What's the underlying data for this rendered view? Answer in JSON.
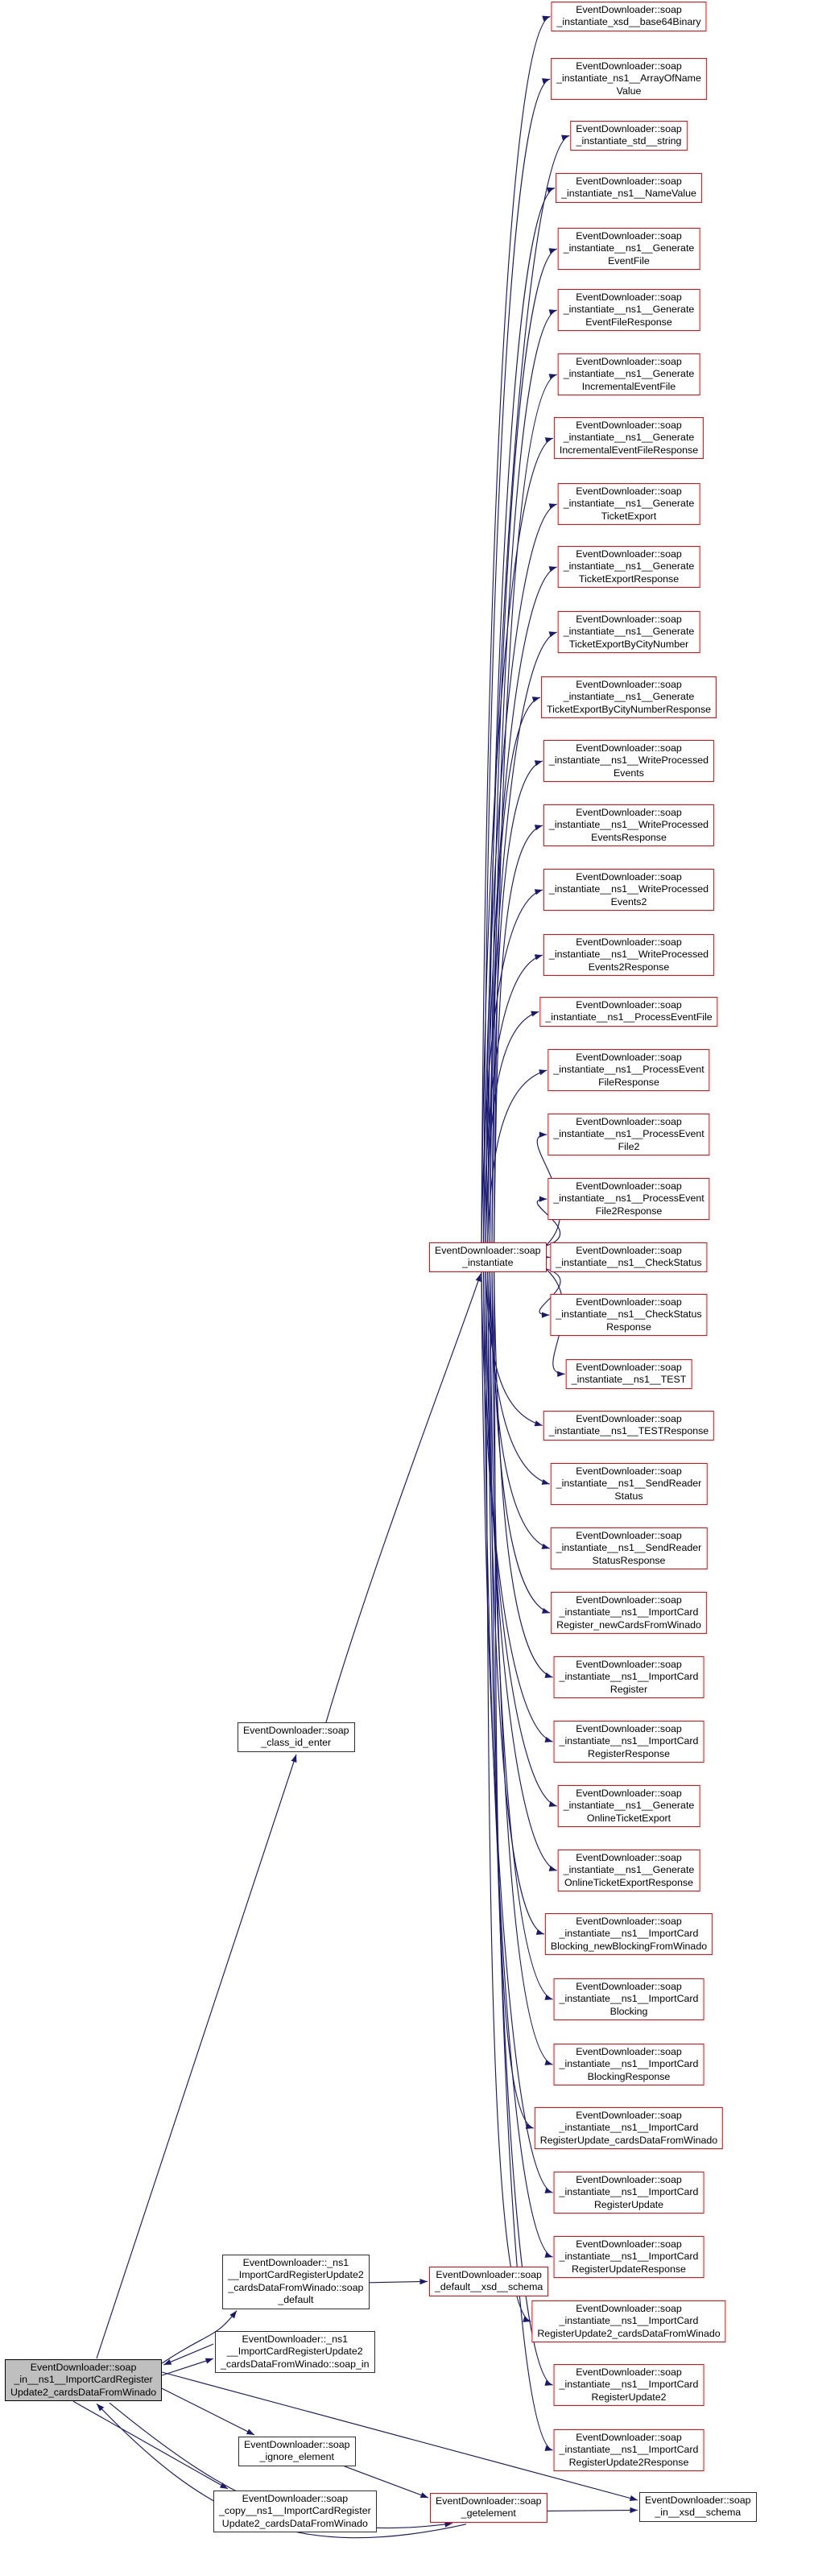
{
  "diagram": {
    "type": "call-graph",
    "colors": {
      "edge": "#191970",
      "highlight_border": "#ff0000",
      "plain_border": "#2e2e2e",
      "root_fill": "#bfbfbf",
      "node_fill": "#ffffff",
      "background": "#ffffff"
    },
    "nodes": {
      "root": {
        "label_lines": [
          "EventDownloader::soap",
          "_in__ns1__ImportCardRegister",
          "Update2_cardsDataFromWinado"
        ],
        "style": "root",
        "interactable": false
      },
      "class_id_enter": {
        "label_lines": [
          "EventDownloader::soap",
          "_class_id_enter"
        ],
        "style": "plain",
        "interactable": true
      },
      "instantiate": {
        "label_lines": [
          "EventDownloader::soap",
          "_instantiate"
        ],
        "style": "highlight",
        "interactable": true
      },
      "ns1_default": {
        "label_lines": [
          "EventDownloader::_ns1",
          "__ImportCardRegisterUpdate2",
          "_cardsDataFromWinado::soap",
          "_default"
        ],
        "style": "plain",
        "interactable": true
      },
      "ns1_in": {
        "label_lines": [
          "EventDownloader::_ns1",
          "__ImportCardRegisterUpdate2",
          "_cardsDataFromWinado::soap_in"
        ],
        "style": "plain",
        "interactable": true
      },
      "ignore": {
        "label_lines": [
          "EventDownloader::soap",
          "_ignore_element"
        ],
        "style": "plain",
        "interactable": true
      },
      "copy": {
        "label_lines": [
          "EventDownloader::soap",
          "_copy__ns1__ImportCardRegister",
          "Update2_cardsDataFromWinado"
        ],
        "style": "plain",
        "interactable": true
      },
      "default_xsd": {
        "label_lines": [
          "EventDownloader::soap",
          "_default__xsd__schema"
        ],
        "style": "highlight",
        "interactable": true
      },
      "getelement": {
        "label_lines": [
          "EventDownloader::soap",
          "_getelement"
        ],
        "style": "highlight",
        "interactable": true
      },
      "in_xsd": {
        "label_lines": [
          "EventDownloader::soap",
          "_in__xsd__schema"
        ],
        "style": "plain",
        "interactable": true
      }
    },
    "instantiate_targets": [
      {
        "id": "t0",
        "label_lines": [
          "EventDownloader::soap",
          "_instantiate_xsd__base64Binary"
        ]
      },
      {
        "id": "t1",
        "label_lines": [
          "EventDownloader::soap",
          "_instantiate_ns1__ArrayOfName",
          "Value"
        ]
      },
      {
        "id": "t2",
        "label_lines": [
          "EventDownloader::soap",
          "_instantiate_std__string"
        ]
      },
      {
        "id": "t3",
        "label_lines": [
          "EventDownloader::soap",
          "_instantiate_ns1__NameValue"
        ]
      },
      {
        "id": "t4",
        "label_lines": [
          "EventDownloader::soap",
          "_instantiate__ns1__Generate",
          "EventFile"
        ]
      },
      {
        "id": "t5",
        "label_lines": [
          "EventDownloader::soap",
          "_instantiate__ns1__Generate",
          "EventFileResponse"
        ]
      },
      {
        "id": "t6",
        "label_lines": [
          "EventDownloader::soap",
          "_instantiate__ns1__Generate",
          "IncrementalEventFile"
        ]
      },
      {
        "id": "t7",
        "label_lines": [
          "EventDownloader::soap",
          "_instantiate__ns1__Generate",
          "IncrementalEventFileResponse"
        ]
      },
      {
        "id": "t8",
        "label_lines": [
          "EventDownloader::soap",
          "_instantiate__ns1__Generate",
          "TicketExport"
        ]
      },
      {
        "id": "t9",
        "label_lines": [
          "EventDownloader::soap",
          "_instantiate__ns1__Generate",
          "TicketExportResponse"
        ]
      },
      {
        "id": "t10",
        "label_lines": [
          "EventDownloader::soap",
          "_instantiate__ns1__Generate",
          "TicketExportByCityNumber"
        ]
      },
      {
        "id": "t11",
        "label_lines": [
          "EventDownloader::soap",
          "_instantiate__ns1__Generate",
          "TicketExportByCityNumberResponse"
        ]
      },
      {
        "id": "t12",
        "label_lines": [
          "EventDownloader::soap",
          "_instantiate__ns1__WriteProcessed",
          "Events"
        ]
      },
      {
        "id": "t13",
        "label_lines": [
          "EventDownloader::soap",
          "_instantiate__ns1__WriteProcessed",
          "EventsResponse"
        ]
      },
      {
        "id": "t14",
        "label_lines": [
          "EventDownloader::soap",
          "_instantiate__ns1__WriteProcessed",
          "Events2"
        ]
      },
      {
        "id": "t15",
        "label_lines": [
          "EventDownloader::soap",
          "_instantiate__ns1__WriteProcessed",
          "Events2Response"
        ]
      },
      {
        "id": "t16",
        "label_lines": [
          "EventDownloader::soap",
          "_instantiate__ns1__ProcessEventFile"
        ]
      },
      {
        "id": "t17",
        "label_lines": [
          "EventDownloader::soap",
          "_instantiate__ns1__ProcessEvent",
          "FileResponse"
        ]
      },
      {
        "id": "t18",
        "label_lines": [
          "EventDownloader::soap",
          "_instantiate__ns1__ProcessEvent",
          "File2"
        ]
      },
      {
        "id": "t19",
        "label_lines": [
          "EventDownloader::soap",
          "_instantiate__ns1__ProcessEvent",
          "File2Response"
        ]
      },
      {
        "id": "t20",
        "label_lines": [
          "EventDownloader::soap",
          "_instantiate__ns1__CheckStatus"
        ]
      },
      {
        "id": "t21",
        "label_lines": [
          "EventDownloader::soap",
          "_instantiate__ns1__CheckStatus",
          "Response"
        ]
      },
      {
        "id": "t22",
        "label_lines": [
          "EventDownloader::soap",
          "_instantiate__ns1__TEST"
        ]
      },
      {
        "id": "t23",
        "label_lines": [
          "EventDownloader::soap",
          "_instantiate__ns1__TESTResponse"
        ]
      },
      {
        "id": "t24",
        "label_lines": [
          "EventDownloader::soap",
          "_instantiate__ns1__SendReader",
          "Status"
        ]
      },
      {
        "id": "t25",
        "label_lines": [
          "EventDownloader::soap",
          "_instantiate__ns1__SendReader",
          "StatusResponse"
        ]
      },
      {
        "id": "t26",
        "label_lines": [
          "EventDownloader::soap",
          "_instantiate__ns1__ImportCard",
          "Register_newCardsFromWinado"
        ]
      },
      {
        "id": "t27",
        "label_lines": [
          "EventDownloader::soap",
          "_instantiate__ns1__ImportCard",
          "Register"
        ]
      },
      {
        "id": "t28",
        "label_lines": [
          "EventDownloader::soap",
          "_instantiate__ns1__ImportCard",
          "RegisterResponse"
        ]
      },
      {
        "id": "t29",
        "label_lines": [
          "EventDownloader::soap",
          "_instantiate__ns1__Generate",
          "OnlineTicketExport"
        ]
      },
      {
        "id": "t30",
        "label_lines": [
          "EventDownloader::soap",
          "_instantiate__ns1__Generate",
          "OnlineTicketExportResponse"
        ]
      },
      {
        "id": "t31",
        "label_lines": [
          "EventDownloader::soap",
          "_instantiate__ns1__ImportCard",
          "Blocking_newBlockingFromWinado"
        ]
      },
      {
        "id": "t32",
        "label_lines": [
          "EventDownloader::soap",
          "_instantiate__ns1__ImportCard",
          "Blocking"
        ]
      },
      {
        "id": "t33",
        "label_lines": [
          "EventDownloader::soap",
          "_instantiate__ns1__ImportCard",
          "BlockingResponse"
        ]
      },
      {
        "id": "t34",
        "label_lines": [
          "EventDownloader::soap",
          "_instantiate__ns1__ImportCard",
          "RegisterUpdate_cardsDataFromWinado"
        ]
      },
      {
        "id": "t35",
        "label_lines": [
          "EventDownloader::soap",
          "_instantiate__ns1__ImportCard",
          "RegisterUpdate"
        ]
      },
      {
        "id": "t36",
        "label_lines": [
          "EventDownloader::soap",
          "_instantiate__ns1__ImportCard",
          "RegisterUpdateResponse"
        ]
      },
      {
        "id": "t37",
        "label_lines": [
          "EventDownloader::soap",
          "_instantiate__ns1__ImportCard",
          "RegisterUpdate2_cardsDataFromWinado"
        ]
      },
      {
        "id": "t38",
        "label_lines": [
          "EventDownloader::soap",
          "_instantiate__ns1__ImportCard",
          "RegisterUpdate2"
        ]
      },
      {
        "id": "t39",
        "label_lines": [
          "EventDownloader::soap",
          "_instantiate__ns1__ImportCard",
          "RegisterUpdate2Response"
        ]
      }
    ],
    "edges": [
      {
        "from": "root",
        "to": "ns1_default"
      },
      {
        "from": "ns1_default",
        "to": "default_xsd"
      },
      {
        "from": "root",
        "to": "ns1_in"
      },
      {
        "from": "ns1_in",
        "to": "root"
      },
      {
        "from": "root",
        "to": "class_id_enter"
      },
      {
        "from": "class_id_enter",
        "to": "instantiate"
      },
      {
        "from": "root",
        "to": "ignore"
      },
      {
        "from": "root",
        "to": "copy"
      },
      {
        "from": "root",
        "to": "in_xsd"
      },
      {
        "from": "ignore",
        "to": "getelement"
      },
      {
        "from": "root",
        "to": "getelement"
      },
      {
        "from": "getelement",
        "to": "root"
      },
      {
        "from": "getelement",
        "to": "in_xsd"
      }
    ],
    "instantiate_calls_every_target": true
  }
}
